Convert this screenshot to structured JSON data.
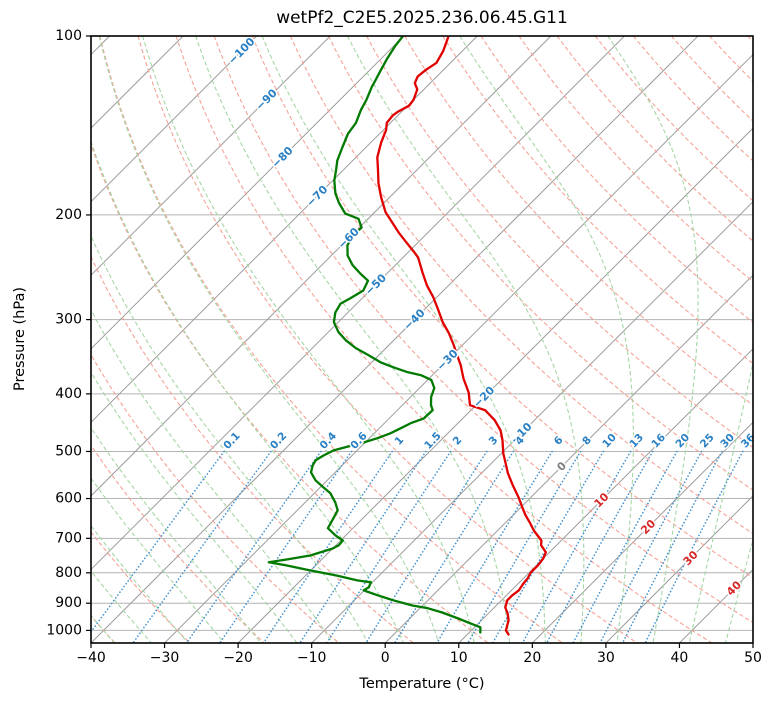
{
  "title": "wetPf2_C2E5.2025.236.06.45.G11",
  "x_axis": {
    "label": "Temperature (°C)",
    "ticks": [
      {
        "v": -40,
        "label": "−40"
      },
      {
        "v": -30,
        "label": "−30"
      },
      {
        "v": -20,
        "label": "−20"
      },
      {
        "v": -10,
        "label": "−10"
      },
      {
        "v": 0,
        "label": "0"
      },
      {
        "v": 10,
        "label": "10"
      },
      {
        "v": 20,
        "label": "20"
      },
      {
        "v": 30,
        "label": "30"
      },
      {
        "v": 40,
        "label": "40"
      },
      {
        "v": 50,
        "label": "50"
      }
    ]
  },
  "y_axis": {
    "label": "Pressure (hPa)",
    "ticks": [
      {
        "v": 100,
        "label": "100"
      },
      {
        "v": 200,
        "label": "200"
      },
      {
        "v": 300,
        "label": "300"
      },
      {
        "v": 400,
        "label": "400"
      },
      {
        "v": 500,
        "label": "500"
      },
      {
        "v": 600,
        "label": "600"
      },
      {
        "v": 700,
        "label": "700"
      },
      {
        "v": 800,
        "label": "800"
      },
      {
        "v": 900,
        "label": "900"
      },
      {
        "v": 1000,
        "label": "1000"
      }
    ]
  },
  "chart_data": {
    "type": "line",
    "subtype": "skew-t-log-p",
    "title": "wetPf2_C2E5.2025.236.06.45.G11",
    "xlabel": "Temperature (°C)",
    "ylabel": "Pressure (hPa)",
    "x_range": [
      -40,
      50
    ],
    "p_range": [
      100,
      1050
    ],
    "y_scale": "log",
    "grid": true,
    "legend": "none",
    "grid_pressures": [
      100,
      200,
      300,
      400,
      500,
      600,
      700,
      800,
      900,
      1000
    ],
    "series": [
      {
        "name": "temperature",
        "units": "p:hPa, t:degC",
        "color": "#e00000",
        "points": [
          [
            100,
            -73.9
          ],
          [
            106,
            -72.6
          ],
          [
            111,
            -71.9
          ],
          [
            114,
            -72.4
          ],
          [
            117,
            -72.6
          ],
          [
            120,
            -72.1
          ],
          [
            123,
            -70.9
          ],
          [
            128,
            -70.0
          ],
          [
            131,
            -69.8
          ],
          [
            134,
            -70.5
          ],
          [
            136,
            -70.7
          ],
          [
            140,
            -70.5
          ],
          [
            144,
            -69.6
          ],
          [
            151,
            -68.6
          ],
          [
            160,
            -67.1
          ],
          [
            168,
            -65.3
          ],
          [
            177,
            -63.4
          ],
          [
            187,
            -61.1
          ],
          [
            198,
            -58.5
          ],
          [
            206,
            -56.2
          ],
          [
            214,
            -54.0
          ],
          [
            221,
            -52.0
          ],
          [
            231,
            -49.2
          ],
          [
            236,
            -47.9
          ],
          [
            250,
            -45.3
          ],
          [
            263,
            -42.9
          ],
          [
            275,
            -40.5
          ],
          [
            287,
            -38.4
          ],
          [
            303,
            -35.8
          ],
          [
            316,
            -33.5
          ],
          [
            331,
            -31.2
          ],
          [
            344,
            -29.4
          ],
          [
            358,
            -27.5
          ],
          [
            377,
            -25.3
          ],
          [
            398,
            -22.7
          ],
          [
            418,
            -20.8
          ],
          [
            426,
            -18.1
          ],
          [
            443,
            -15.4
          ],
          [
            461,
            -13.2
          ],
          [
            479,
            -11.6
          ],
          [
            504,
            -9.7
          ],
          [
            523,
            -8.1
          ],
          [
            544,
            -6.4
          ],
          [
            570,
            -4.1
          ],
          [
            597,
            -1.7
          ],
          [
            621,
            0.2
          ],
          [
            640,
            1.7
          ],
          [
            660,
            3.4
          ],
          [
            679,
            4.9
          ],
          [
            706,
            7.3
          ],
          [
            719,
            7.9
          ],
          [
            739,
            9.5
          ],
          [
            757,
            10.0
          ],
          [
            777,
            10.2
          ],
          [
            799,
            10.2
          ],
          [
            818,
            10.6
          ],
          [
            834,
            10.7
          ],
          [
            856,
            11.0
          ],
          [
            873,
            10.8
          ],
          [
            890,
            10.8
          ],
          [
            915,
            11.5
          ],
          [
            936,
            12.6
          ],
          [
            962,
            13.7
          ],
          [
            981,
            14.2
          ],
          [
            1000,
            14.7
          ],
          [
            1016,
            15.6
          ]
        ]
      },
      {
        "name": "dewpoint",
        "units": "p:hPa, t:degC",
        "color": "#007a00",
        "points": [
          [
            100,
            -80.1
          ],
          [
            104,
            -79.8
          ],
          [
            109,
            -79.2
          ],
          [
            114,
            -78.5
          ],
          [
            119,
            -77.8
          ],
          [
            122,
            -77.4
          ],
          [
            128,
            -76.4
          ],
          [
            133,
            -75.8
          ],
          [
            140,
            -74.7
          ],
          [
            146,
            -74.3
          ],
          [
            154,
            -73.2
          ],
          [
            162,
            -72.1
          ],
          [
            168,
            -71.0
          ],
          [
            175,
            -69.8
          ],
          [
            184,
            -67.9
          ],
          [
            191,
            -66.1
          ],
          [
            199,
            -63.8
          ],
          [
            203,
            -61.3
          ],
          [
            210,
            -59.7
          ],
          [
            216,
            -59.8
          ],
          [
            225,
            -59.2
          ],
          [
            234,
            -57.8
          ],
          [
            243,
            -55.8
          ],
          [
            251,
            -53.6
          ],
          [
            258,
            -51.6
          ],
          [
            268,
            -50.9
          ],
          [
            276,
            -51.6
          ],
          [
            282,
            -52.2
          ],
          [
            292,
            -51.7
          ],
          [
            303,
            -50.6
          ],
          [
            315,
            -48.6
          ],
          [
            325,
            -46.5
          ],
          [
            335,
            -44.1
          ],
          [
            344,
            -41.5
          ],
          [
            354,
            -38.8
          ],
          [
            361,
            -36.3
          ],
          [
            368,
            -33.7
          ],
          [
            372,
            -31.6
          ],
          [
            379,
            -29.5
          ],
          [
            391,
            -28.0
          ],
          [
            405,
            -27.2
          ],
          [
            418,
            -26.1
          ],
          [
            426,
            -25.2
          ],
          [
            440,
            -25.3
          ],
          [
            448,
            -26.4
          ],
          [
            457,
            -27.1
          ],
          [
            466,
            -27.8
          ],
          [
            475,
            -28.9
          ],
          [
            483,
            -30.2
          ],
          [
            488,
            -31.3
          ],
          [
            498,
            -33.2
          ],
          [
            508,
            -33.9
          ],
          [
            517,
            -34.3
          ],
          [
            528,
            -34.0
          ],
          [
            542,
            -33.3
          ],
          [
            559,
            -31.6
          ],
          [
            575,
            -29.5
          ],
          [
            588,
            -27.8
          ],
          [
            609,
            -25.9
          ],
          [
            628,
            -24.5
          ],
          [
            648,
            -24.0
          ],
          [
            673,
            -23.4
          ],
          [
            692,
            -21.4
          ],
          [
            706,
            -19.7
          ],
          [
            719,
            -19.6
          ],
          [
            728,
            -20.0
          ],
          [
            748,
            -22.1
          ],
          [
            759,
            -24.6
          ],
          [
            768,
            -26.8
          ],
          [
            777,
            -24.1
          ],
          [
            793,
            -20.0
          ],
          [
            808,
            -15.9
          ],
          [
            824,
            -12.3
          ],
          [
            830,
            -10.2
          ],
          [
            846,
            -9.8
          ],
          [
            856,
            -10.1
          ],
          [
            860,
            -9.5
          ],
          [
            873,
            -7.5
          ],
          [
            890,
            -4.7
          ],
          [
            908,
            -1.4
          ],
          [
            918,
            1.1
          ],
          [
            933,
            3.6
          ],
          [
            944,
            5.1
          ],
          [
            955,
            6.6
          ],
          [
            969,
            8.4
          ],
          [
            988,
            10.8
          ],
          [
            1008,
            11.5
          ]
        ]
      }
    ],
    "isotherms": {
      "min": -120,
      "max": 50,
      "step": 10,
      "color": "#9c9c9c"
    },
    "isotherm_labels": [
      {
        "t": -100,
        "p": 106,
        "label": "−100",
        "color": "#2a80c4"
      },
      {
        "t": -90,
        "p": 128,
        "label": "−90",
        "color": "#2a80c4"
      },
      {
        "t": -80,
        "p": 160,
        "label": "−80",
        "color": "#2a80c4"
      },
      {
        "t": -70,
        "p": 186,
        "label": "−70",
        "color": "#2a80c4"
      },
      {
        "t": -60,
        "p": 219,
        "label": "−60",
        "color": "#2a80c4"
      },
      {
        "t": -50,
        "p": 262,
        "label": "−50",
        "color": "#2a80c4"
      },
      {
        "t": -40,
        "p": 300,
        "label": "−40",
        "color": "#2a80c4"
      },
      {
        "t": -30,
        "p": 351,
        "label": "−30",
        "color": "#2a80c4"
      },
      {
        "t": -20,
        "p": 405,
        "label": "−20",
        "color": "#2a80c4"
      },
      {
        "t": -10,
        "p": 466,
        "label": "−10",
        "color": "#2a80c4"
      },
      {
        "t": 0,
        "p": 530,
        "label": "0",
        "color": "#808080"
      },
      {
        "t": 10,
        "p": 604,
        "label": "10",
        "color": "#d62728"
      },
      {
        "t": 20,
        "p": 670,
        "label": "20",
        "color": "#d62728"
      },
      {
        "t": 30,
        "p": 756,
        "label": "30",
        "color": "#d62728"
      },
      {
        "t": 40,
        "p": 850,
        "label": "40",
        "color": "#d62728"
      }
    ],
    "dry_adiabats": {
      "theta_min": -40,
      "theta_max": 200,
      "step": 10,
      "color": "#f5a296"
    },
    "moist_adiabats": {
      "t0_min": -40,
      "t0_max": 45,
      "step": 5,
      "color": "#a5d6a5"
    },
    "mixing_lines": {
      "values_g_kg": [
        0.1,
        0.2,
        0.4,
        0.6,
        1,
        1.5,
        2,
        3,
        4,
        6,
        8,
        10,
        13,
        16,
        20,
        25,
        30,
        36
      ],
      "labels": [
        "0.1",
        "0.2",
        "0.4",
        "0.6",
        "1",
        "1.5",
        "2",
        "3",
        "4",
        "6",
        "8",
        "10",
        "13",
        "16",
        "20",
        "25",
        "30",
        "36"
      ],
      "color": "#4392cf",
      "label_color": "#2a80c4",
      "top_pressure": 500,
      "label_pressure": 480
    },
    "colors": {
      "temperature": "#e00000",
      "dewpoint": "#007a00",
      "gridline": "#b4b4b4",
      "spine": "#000000"
    }
  }
}
